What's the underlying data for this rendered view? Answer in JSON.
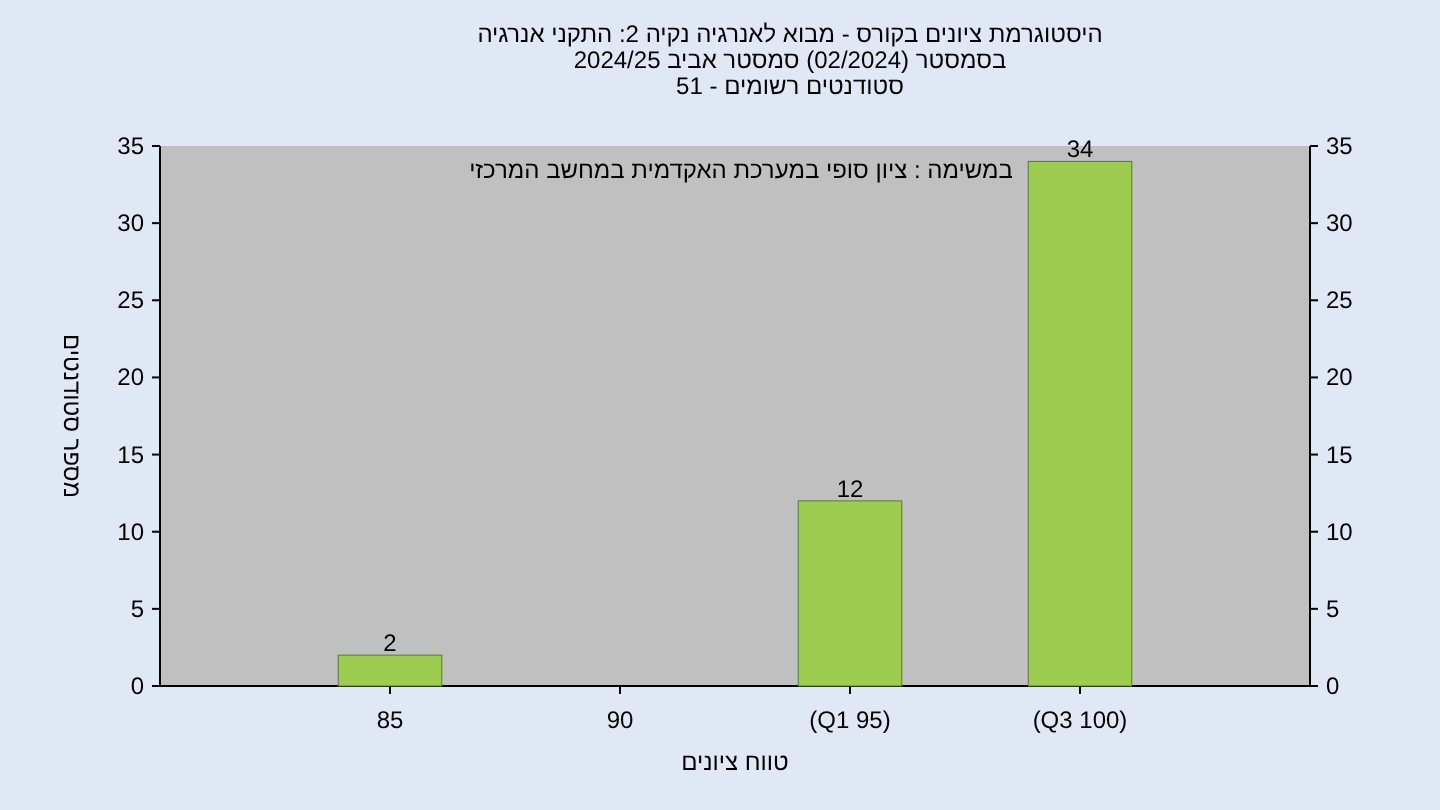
{
  "chart_data": {
    "type": "bar",
    "title": "היסטוגרמת ציונים בקורס - מבוא לאנרגיה נקיה 2: התקני אנרגיה",
    "subtitle": "בסמסטר  (02/2024)  סמסטר אביב 2024/25",
    "annotations": [
      "סטודנטים רשומים - 51",
      "במשימה : ציון סופי במערכת האקדמית במחשב המרכזי"
    ],
    "xlabel": "טווח ציונים",
    "ylabel": "מספר סטודנטים",
    "categories": [
      "85",
      "90",
      "(Q1 95)",
      "(Q3 100)"
    ],
    "values": [
      2,
      0,
      12,
      34
    ],
    "value_labels": [
      "2",
      null,
      "12",
      "34"
    ],
    "color": "#9ccc50",
    "ylim": [
      0,
      35
    ],
    "yticks": [
      0,
      5,
      10,
      15,
      20,
      25,
      30,
      35
    ],
    "y2lim": [
      0,
      35
    ],
    "y2ticks": [
      0,
      5,
      10,
      15,
      20,
      25,
      30,
      35
    ]
  }
}
